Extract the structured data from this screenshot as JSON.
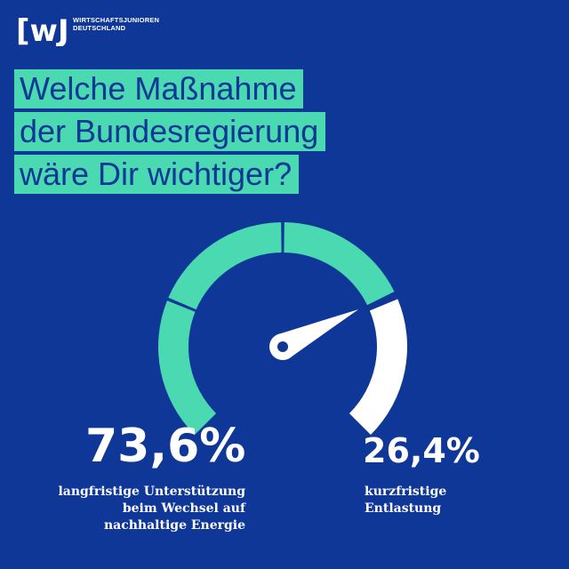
{
  "brand": {
    "logo_mark": "[wJ",
    "name_line1": "WIRTSCHAFTSJUNIOREN",
    "name_line2": "DEUTSCHLAND"
  },
  "question": {
    "line1": "Welche Maßnahme",
    "line2": "der Bundesregierung",
    "line3": "wäre Dir wichtiger?"
  },
  "colors": {
    "background": "#0f3798",
    "accent": "#4ad9b0",
    "secondary": "#ffffff"
  },
  "chart_data": {
    "type": "gauge",
    "series": [
      {
        "value": 73.6,
        "value_label": "73,6%",
        "label_lines": [
          "langfristige Unterstützung",
          "beim Wechsel auf",
          "nachhaltige Energie"
        ],
        "color": "#4ad9b0"
      },
      {
        "value": 26.4,
        "value_label": "26,4%",
        "label_lines": [
          "kurzfristige",
          "Entlastung"
        ],
        "color": "#ffffff"
      }
    ],
    "range": [
      0,
      100
    ]
  }
}
